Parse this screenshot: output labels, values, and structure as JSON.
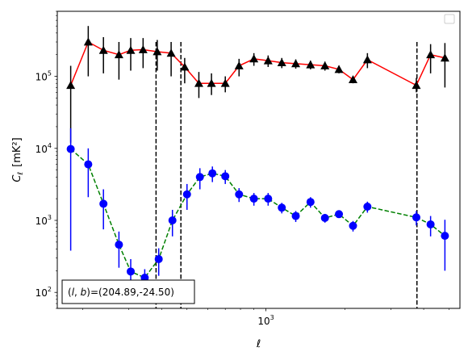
{
  "chart_data": {
    "type": "scatter",
    "title": "",
    "xlabel": "ℓ",
    "ylabel_main": "C",
    "ylabel_sub": "ℓ",
    "ylabel_unit": "[mK²]",
    "xscale": "log",
    "yscale": "log",
    "xlim": [
      160,
      5500
    ],
    "ylim": [
      60,
      800000
    ],
    "x_tick_labels": [
      {
        "value": 1000,
        "base": "10",
        "exp": "3"
      }
    ],
    "y_tick_labels": [
      {
        "value": 100,
        "base": "10",
        "exp": "2"
      },
      {
        "value": 1000,
        "base": "10",
        "exp": "3"
      },
      {
        "value": 10000,
        "base": "10",
        "exp": "4"
      },
      {
        "value": 100000,
        "base": "10",
        "exp": "5"
      }
    ],
    "legend": {
      "placement": "top-right",
      "entries": []
    },
    "annotation": "(l, b)=(204.89,-24.50)",
    "annotation_parts": {
      "open": "(",
      "l": "l",
      "comma": ", ",
      "b": "b",
      "close": ")=(204.89,-24.50)"
    },
    "vlines_x": [
      381,
      474,
      3770
    ],
    "series": [
      {
        "marker": "triangle",
        "marker_color": "#000000",
        "line_color": "#ff0000",
        "line_style": "solid",
        "points": [
          {
            "x": 180,
            "y": 75000,
            "lo": 12000,
            "hi": 140000
          },
          {
            "x": 210,
            "y": 300000,
            "lo": 100000,
            "hi": 500000
          },
          {
            "x": 240,
            "y": 230000,
            "lo": 110000,
            "hi": 350000
          },
          {
            "x": 275,
            "y": 200000,
            "lo": 90000,
            "hi": 300000
          },
          {
            "x": 305,
            "y": 230000,
            "lo": 120000,
            "hi": 340000
          },
          {
            "x": 340,
            "y": 235000,
            "lo": 130000,
            "hi": 340000
          },
          {
            "x": 385,
            "y": 220000,
            "lo": 120000,
            "hi": 320000
          },
          {
            "x": 435,
            "y": 210000,
            "lo": 100000,
            "hi": 300000
          },
          {
            "x": 490,
            "y": 135000,
            "lo": 80000,
            "hi": 180000
          },
          {
            "x": 555,
            "y": 80000,
            "lo": 50000,
            "hi": 115000
          },
          {
            "x": 620,
            "y": 80000,
            "lo": 55000,
            "hi": 110000
          },
          {
            "x": 700,
            "y": 80000,
            "lo": 60000,
            "hi": 100000
          },
          {
            "x": 790,
            "y": 140000,
            "lo": 100000,
            "hi": 175000
          },
          {
            "x": 900,
            "y": 175000,
            "lo": 140000,
            "hi": 210000
          },
          {
            "x": 1020,
            "y": 165000,
            "lo": 135000,
            "hi": 195000
          },
          {
            "x": 1150,
            "y": 155000,
            "lo": 130000,
            "hi": 180000
          },
          {
            "x": 1300,
            "y": 150000,
            "lo": 128000,
            "hi": 172000
          },
          {
            "x": 1480,
            "y": 145000,
            "lo": 125000,
            "hi": 165000
          },
          {
            "x": 1680,
            "y": 140000,
            "lo": 120000,
            "hi": 160000
          },
          {
            "x": 1900,
            "y": 125000,
            "lo": 110000,
            "hi": 140000
          },
          {
            "x": 2150,
            "y": 90000,
            "lo": 80000,
            "hi": 100000
          },
          {
            "x": 2440,
            "y": 170000,
            "lo": 130000,
            "hi": 210000
          },
          {
            "x": 3750,
            "y": 75000,
            "lo": 60000,
            "hi": 95000
          },
          {
            "x": 4250,
            "y": 200000,
            "lo": 110000,
            "hi": 280000
          },
          {
            "x": 4820,
            "y": 180000,
            "lo": 70000,
            "hi": 290000
          }
        ]
      },
      {
        "marker": "circle",
        "marker_color": "#0000ff",
        "line_color": "#008000",
        "line_style": "dashed",
        "points": [
          {
            "x": 180,
            "y": 9800,
            "lo": 380,
            "hi": 19000
          },
          {
            "x": 210,
            "y": 6000,
            "lo": 2100,
            "hi": 10000
          },
          {
            "x": 240,
            "y": 1700,
            "lo": 750,
            "hi": 2700
          },
          {
            "x": 275,
            "y": 460,
            "lo": 220,
            "hi": 700
          },
          {
            "x": 305,
            "y": 195,
            "lo": 110,
            "hi": 290
          },
          {
            "x": 345,
            "y": 160,
            "lo": 120,
            "hi": 210
          },
          {
            "x": 390,
            "y": 290,
            "lo": 170,
            "hi": 410
          },
          {
            "x": 440,
            "y": 1000,
            "lo": 600,
            "hi": 1400
          },
          {
            "x": 500,
            "y": 2300,
            "lo": 1400,
            "hi": 3200
          },
          {
            "x": 560,
            "y": 4000,
            "lo": 2700,
            "hi": 5300
          },
          {
            "x": 625,
            "y": 4500,
            "lo": 3400,
            "hi": 5600
          },
          {
            "x": 700,
            "y": 4100,
            "lo": 3200,
            "hi": 5000
          },
          {
            "x": 790,
            "y": 2300,
            "lo": 1800,
            "hi": 2800
          },
          {
            "x": 900,
            "y": 2000,
            "lo": 1600,
            "hi": 2400
          },
          {
            "x": 1020,
            "y": 2000,
            "lo": 1600,
            "hi": 2400
          },
          {
            "x": 1150,
            "y": 1500,
            "lo": 1250,
            "hi": 1750
          },
          {
            "x": 1300,
            "y": 1150,
            "lo": 950,
            "hi": 1350
          },
          {
            "x": 1480,
            "y": 1800,
            "lo": 1500,
            "hi": 2100
          },
          {
            "x": 1680,
            "y": 1080,
            "lo": 930,
            "hi": 1230
          },
          {
            "x": 1900,
            "y": 1220,
            "lo": 1080,
            "hi": 1360
          },
          {
            "x": 2150,
            "y": 840,
            "lo": 700,
            "hi": 980
          },
          {
            "x": 2440,
            "y": 1550,
            "lo": 1280,
            "hi": 1820
          },
          {
            "x": 3750,
            "y": 1100,
            "lo": 850,
            "hi": 1350
          },
          {
            "x": 4250,
            "y": 880,
            "lo": 600,
            "hi": 1150
          },
          {
            "x": 4820,
            "y": 610,
            "lo": 200,
            "hi": 1020
          }
        ]
      }
    ]
  }
}
